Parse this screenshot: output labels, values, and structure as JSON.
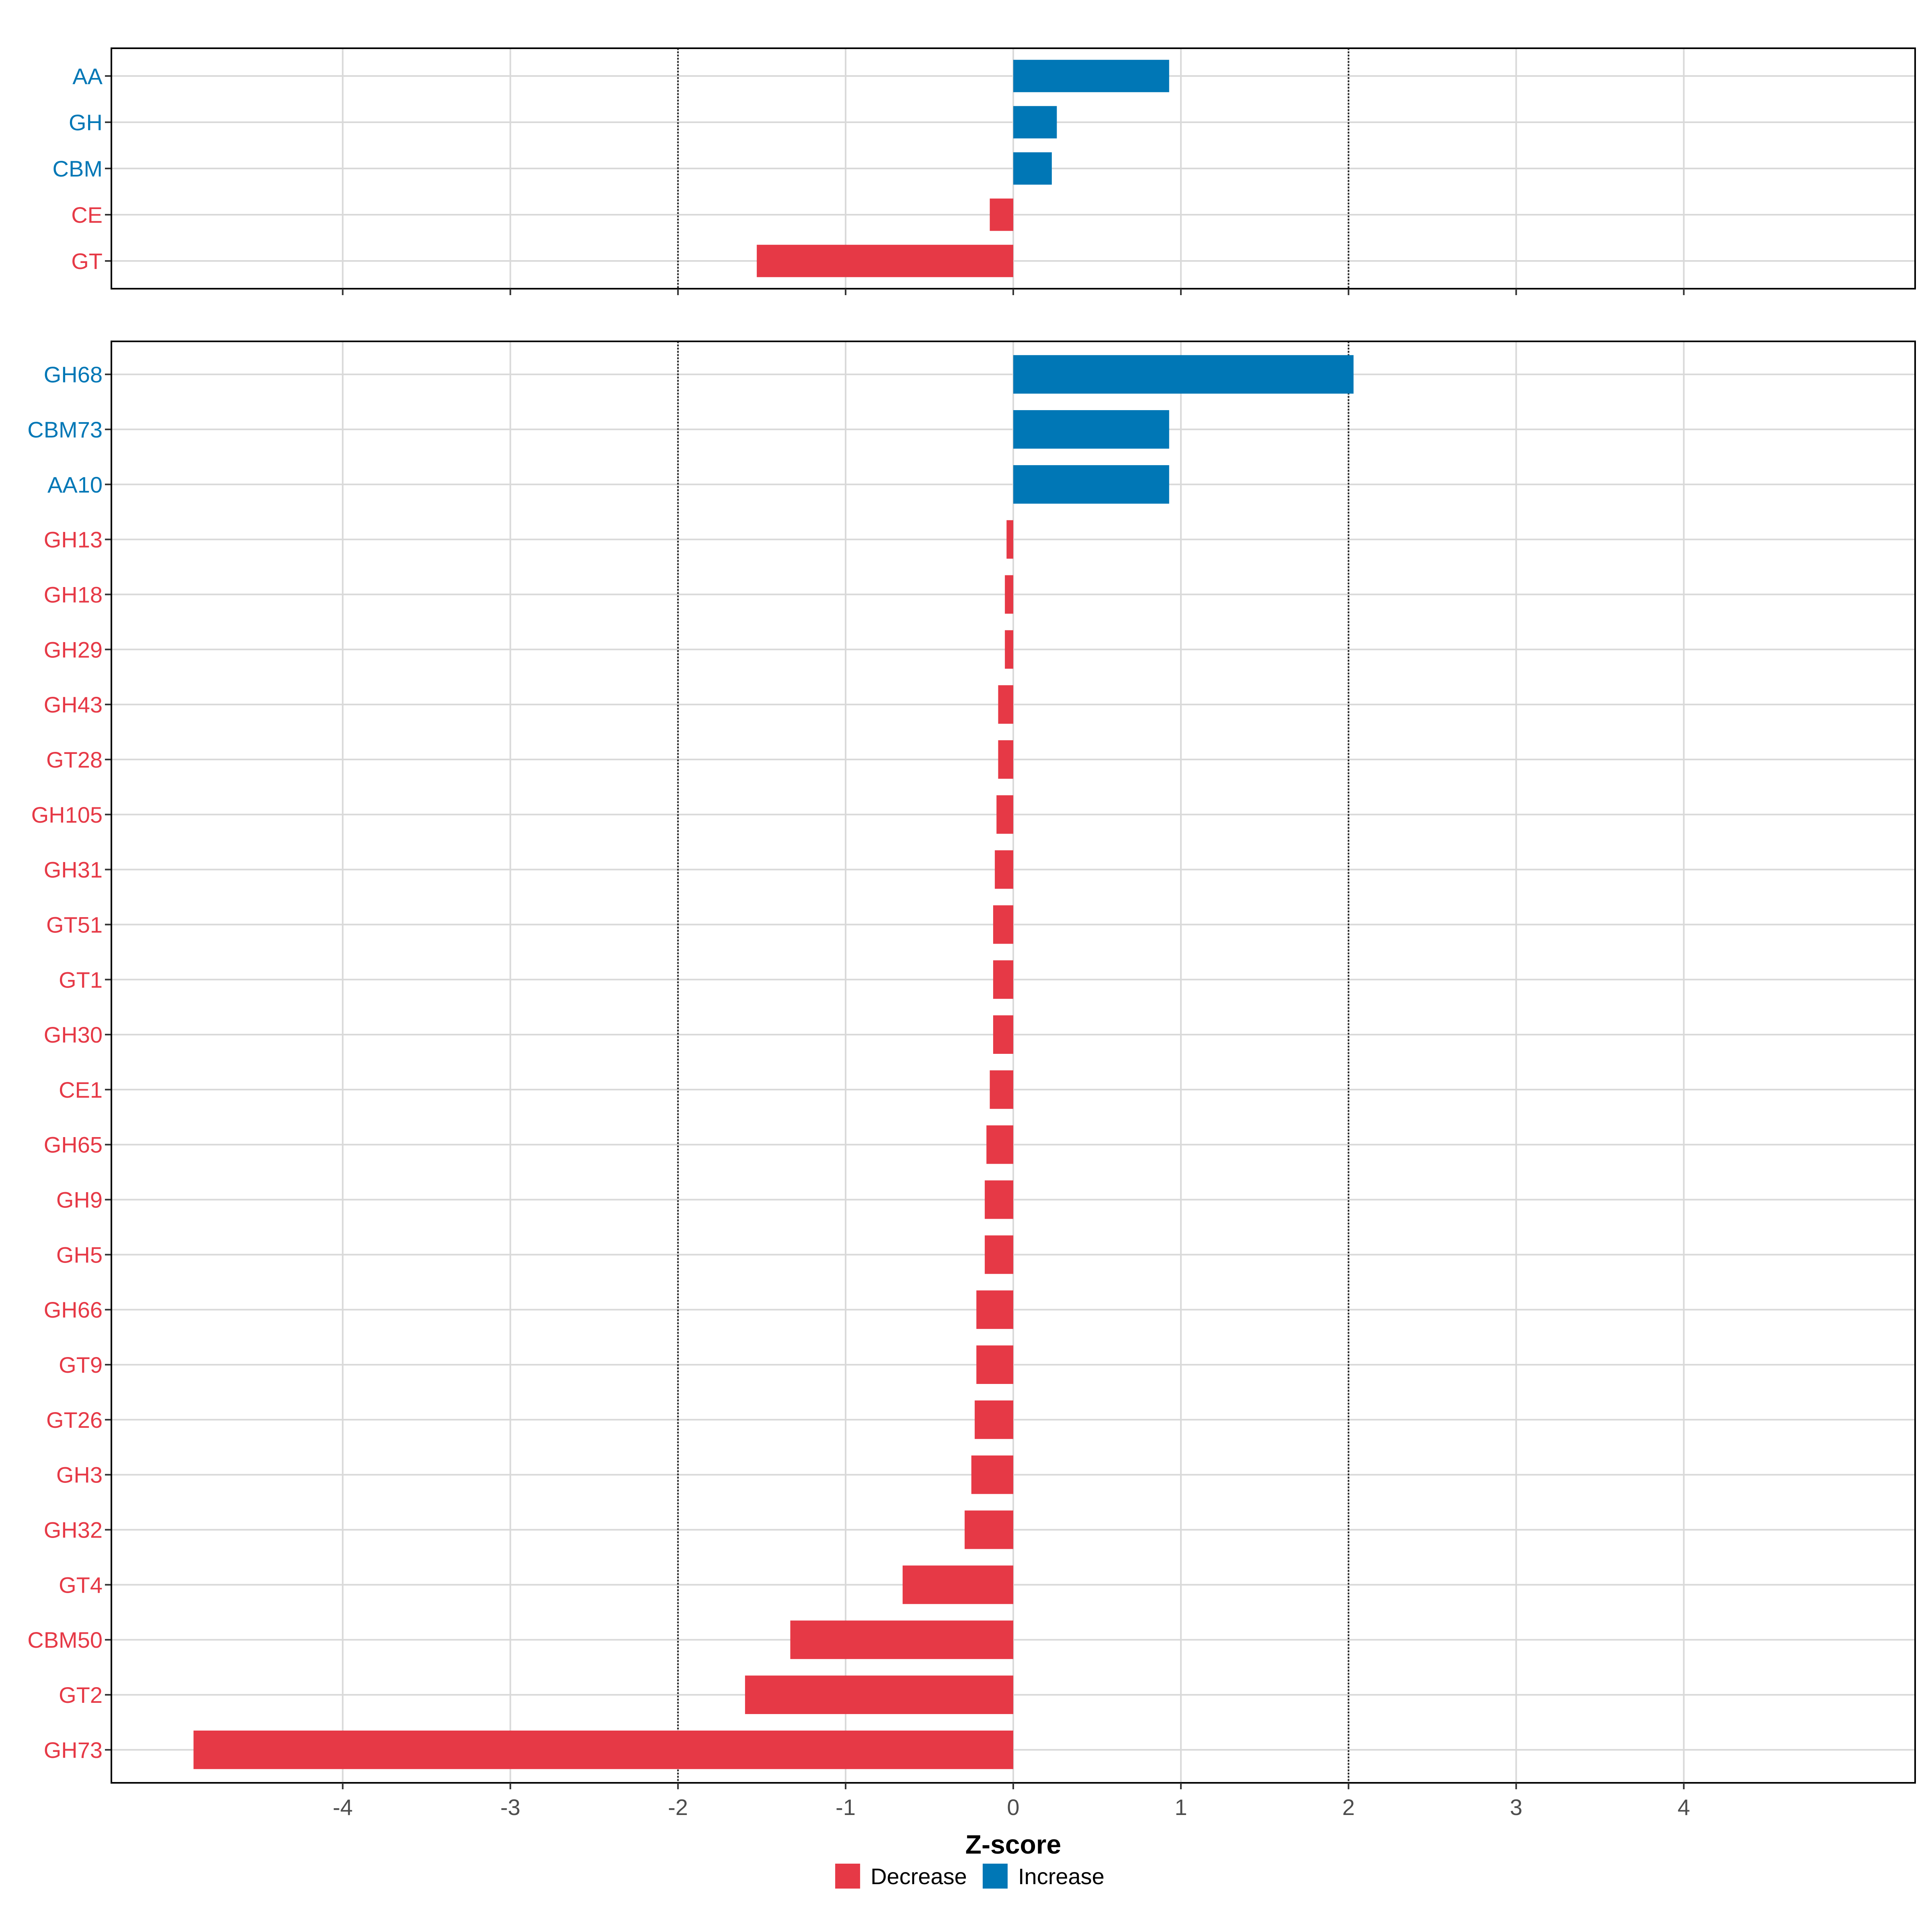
{
  "chart_data": [
    {
      "type": "bar",
      "orientation": "horizontal",
      "panel": "top",
      "categories": [
        "AA",
        "GH",
        "CBM",
        "CE",
        "GT"
      ],
      "values": [
        0.93,
        0.26,
        0.23,
        -0.14,
        -1.53
      ],
      "groups": [
        "Increase",
        "Increase",
        "Increase",
        "Decrease",
        "Decrease"
      ],
      "xlim": [
        -5.38,
        5.38
      ],
      "reference_lines": [
        -2,
        2
      ],
      "grid": true
    },
    {
      "type": "bar",
      "orientation": "horizontal",
      "panel": "bottom",
      "categories": [
        "GH68",
        "CBM73",
        "AA10",
        "GH13",
        "GH18",
        "GH29",
        "GH43",
        "GT28",
        "GH105",
        "GH31",
        "GT51",
        "GT1",
        "GH30",
        "CE1",
        "GH65",
        "GH9",
        "GH5",
        "GH66",
        "GT9",
        "GT26",
        "GH3",
        "GH32",
        "GT4",
        "CBM50",
        "GT2",
        "GH73"
      ],
      "values": [
        2.03,
        0.93,
        0.93,
        -0.04,
        -0.05,
        -0.05,
        -0.09,
        -0.09,
        -0.1,
        -0.11,
        -0.12,
        -0.12,
        -0.12,
        -0.14,
        -0.16,
        -0.17,
        -0.17,
        -0.22,
        -0.22,
        -0.23,
        -0.25,
        -0.29,
        -0.66,
        -1.33,
        -1.6,
        -4.89
      ],
      "groups": [
        "Increase",
        "Increase",
        "Increase",
        "Decrease",
        "Decrease",
        "Decrease",
        "Decrease",
        "Decrease",
        "Decrease",
        "Decrease",
        "Decrease",
        "Decrease",
        "Decrease",
        "Decrease",
        "Decrease",
        "Decrease",
        "Decrease",
        "Decrease",
        "Decrease",
        "Decrease",
        "Decrease",
        "Decrease",
        "Decrease",
        "Decrease",
        "Decrease",
        "Decrease"
      ],
      "xlim": [
        -5.38,
        5.38
      ],
      "xticks": [
        -4,
        -3,
        -2,
        -1,
        0,
        1,
        2,
        3,
        4
      ],
      "xticklabels": [
        "-4",
        "-3",
        "-2",
        "-1",
        "0",
        "1",
        "2",
        "3",
        "4"
      ],
      "xlabel": "Z-score",
      "reference_lines": [
        -2,
        2
      ],
      "grid": true
    }
  ],
  "legend": {
    "placement": "bottom",
    "items": [
      {
        "label": "Decrease",
        "color": "#E63946"
      },
      {
        "label": "Increase",
        "color": "#0077B6"
      }
    ]
  },
  "colors": {
    "Decrease": "#E63946",
    "Increase": "#0077B6"
  }
}
